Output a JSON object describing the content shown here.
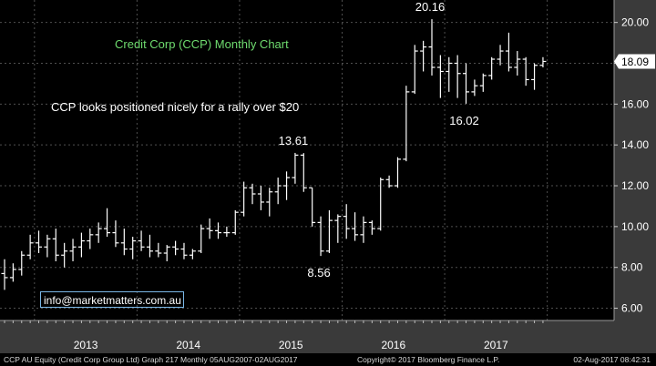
{
  "chart_data": {
    "type": "bar",
    "subtype": "ohlc-monthly",
    "title": "Credit Corp (CCP) Monthly Chart",
    "annotation_text": "CCP looks positioned nicely for a rally over $20",
    "email": "info@marketmatters.com.au",
    "last_price": "18.09",
    "ylim": [
      5.4,
      21.1
    ],
    "yticks": [
      "6.00",
      "8.00",
      "10.00",
      "12.00",
      "14.00",
      "16.00",
      "18.00",
      "20.00"
    ],
    "x_labels": [
      "2013",
      "2014",
      "2015",
      "2016",
      "2017"
    ],
    "price_labels": [
      {
        "text": "20.16",
        "value": 20.16,
        "index": 50
      },
      {
        "text": "13.61",
        "value": 13.61,
        "index": 34
      },
      {
        "text": "8.56",
        "value": 8.56,
        "index": 37
      },
      {
        "text": "16.02",
        "value": 16.02,
        "index": 54
      }
    ],
    "bars": [
      {
        "o": 7.7,
        "h": 8.4,
        "l": 6.9,
        "c": 7.5
      },
      {
        "o": 7.5,
        "h": 8.2,
        "l": 7.3,
        "c": 7.9
      },
      {
        "o": 7.9,
        "h": 8.8,
        "l": 7.6,
        "c": 8.6
      },
      {
        "o": 8.6,
        "h": 9.6,
        "l": 8.4,
        "c": 9.2
      },
      {
        "o": 9.2,
        "h": 9.8,
        "l": 8.7,
        "c": 9.0
      },
      {
        "o": 9.0,
        "h": 9.6,
        "l": 8.5,
        "c": 9.4
      },
      {
        "o": 9.4,
        "h": 9.9,
        "l": 8.3,
        "c": 8.6
      },
      {
        "o": 8.6,
        "h": 9.2,
        "l": 8.0,
        "c": 8.8
      },
      {
        "o": 8.8,
        "h": 9.4,
        "l": 8.3,
        "c": 9.0
      },
      {
        "o": 9.0,
        "h": 9.7,
        "l": 8.5,
        "c": 9.3
      },
      {
        "o": 9.3,
        "h": 9.9,
        "l": 8.9,
        "c": 9.6
      },
      {
        "o": 9.6,
        "h": 10.2,
        "l": 9.2,
        "c": 9.9
      },
      {
        "o": 9.9,
        "h": 10.9,
        "l": 9.5,
        "c": 9.7
      },
      {
        "o": 9.7,
        "h": 10.3,
        "l": 9.0,
        "c": 9.2
      },
      {
        "o": 9.2,
        "h": 9.9,
        "l": 8.6,
        "c": 8.9
      },
      {
        "o": 8.9,
        "h": 9.5,
        "l": 8.4,
        "c": 9.3
      },
      {
        "o": 9.3,
        "h": 9.8,
        "l": 8.8,
        "c": 9.0
      },
      {
        "o": 9.0,
        "h": 9.6,
        "l": 8.5,
        "c": 8.8
      },
      {
        "o": 8.8,
        "h": 9.2,
        "l": 8.5,
        "c": 8.7
      },
      {
        "o": 8.7,
        "h": 9.1,
        "l": 8.3,
        "c": 9.0
      },
      {
        "o": 9.0,
        "h": 9.3,
        "l": 8.6,
        "c": 8.9
      },
      {
        "o": 8.9,
        "h": 9.2,
        "l": 8.4,
        "c": 8.6
      },
      {
        "o": 8.6,
        "h": 8.9,
        "l": 8.4,
        "c": 8.8
      },
      {
        "o": 8.8,
        "h": 10.1,
        "l": 8.7,
        "c": 9.9
      },
      {
        "o": 9.9,
        "h": 10.4,
        "l": 9.4,
        "c": 9.8
      },
      {
        "o": 9.8,
        "h": 10.2,
        "l": 9.4,
        "c": 9.7
      },
      {
        "o": 9.7,
        "h": 10.0,
        "l": 9.5,
        "c": 9.7
      },
      {
        "o": 9.7,
        "h": 10.8,
        "l": 9.6,
        "c": 10.7
      },
      {
        "o": 10.7,
        "h": 12.2,
        "l": 10.5,
        "c": 11.9
      },
      {
        "o": 11.9,
        "h": 12.1,
        "l": 11.1,
        "c": 11.6
      },
      {
        "o": 11.6,
        "h": 12.0,
        "l": 10.8,
        "c": 11.2
      },
      {
        "o": 11.2,
        "h": 11.9,
        "l": 10.5,
        "c": 11.7
      },
      {
        "o": 11.7,
        "h": 12.4,
        "l": 11.1,
        "c": 12.0
      },
      {
        "o": 12.0,
        "h": 12.7,
        "l": 11.3,
        "c": 12.4
      },
      {
        "o": 12.4,
        "h": 13.61,
        "l": 12.1,
        "c": 13.5
      },
      {
        "o": 13.5,
        "h": 13.6,
        "l": 11.7,
        "c": 11.9
      },
      {
        "o": 11.9,
        "h": 11.9,
        "l": 10.0,
        "c": 10.2
      },
      {
        "o": 10.2,
        "h": 10.5,
        "l": 8.56,
        "c": 8.8
      },
      {
        "o": 8.8,
        "h": 10.8,
        "l": 8.7,
        "c": 10.3
      },
      {
        "o": 10.3,
        "h": 10.6,
        "l": 9.2,
        "c": 10.5
      },
      {
        "o": 10.5,
        "h": 11.1,
        "l": 9.4,
        "c": 9.9
      },
      {
        "o": 9.9,
        "h": 10.7,
        "l": 9.3,
        "c": 9.6
      },
      {
        "o": 9.6,
        "h": 10.5,
        "l": 9.2,
        "c": 10.2
      },
      {
        "o": 10.2,
        "h": 10.3,
        "l": 9.6,
        "c": 9.9
      },
      {
        "o": 9.9,
        "h": 12.4,
        "l": 9.8,
        "c": 12.3
      },
      {
        "o": 12.3,
        "h": 12.5,
        "l": 11.9,
        "c": 12.0
      },
      {
        "o": 12.0,
        "h": 13.4,
        "l": 11.9,
        "c": 13.3
      },
      {
        "o": 13.3,
        "h": 16.9,
        "l": 13.2,
        "c": 16.6
      },
      {
        "o": 16.6,
        "h": 18.9,
        "l": 16.5,
        "c": 18.6
      },
      {
        "o": 18.6,
        "h": 19.1,
        "l": 17.6,
        "c": 18.8
      },
      {
        "o": 18.8,
        "h": 20.16,
        "l": 17.4,
        "c": 17.8
      },
      {
        "o": 17.8,
        "h": 18.4,
        "l": 16.3,
        "c": 17.6
      },
      {
        "o": 17.6,
        "h": 18.3,
        "l": 16.6,
        "c": 18.0
      },
      {
        "o": 18.0,
        "h": 18.4,
        "l": 16.3,
        "c": 17.5
      },
      {
        "o": 17.5,
        "h": 18.0,
        "l": 16.02,
        "c": 16.6
      },
      {
        "o": 16.6,
        "h": 17.2,
        "l": 16.4,
        "c": 16.9
      },
      {
        "o": 16.9,
        "h": 17.5,
        "l": 16.6,
        "c": 17.4
      },
      {
        "o": 17.4,
        "h": 18.3,
        "l": 17.2,
        "c": 18.2
      },
      {
        "o": 18.2,
        "h": 18.9,
        "l": 17.9,
        "c": 18.6
      },
      {
        "o": 18.6,
        "h": 19.5,
        "l": 17.6,
        "c": 17.8
      },
      {
        "o": 17.8,
        "h": 18.6,
        "l": 17.4,
        "c": 18.2
      },
      {
        "o": 18.2,
        "h": 18.3,
        "l": 16.9,
        "c": 17.2
      },
      {
        "o": 17.2,
        "h": 18.0,
        "l": 16.7,
        "c": 17.9
      },
      {
        "o": 17.9,
        "h": 18.3,
        "l": 17.8,
        "c": 18.09
      }
    ]
  },
  "footer": {
    "left": "CCP AU Equity (Credit Corp Group Ltd) Graph 217  Monthly 05AUG2007-02AUG2017",
    "middle": "Copyright© 2017 Bloomberg Finance L.P.",
    "right": "02-Aug-2017 08:42:31"
  },
  "colors": {
    "background": "#000000",
    "bar": "#ffffff",
    "grid": "#4f4f4f",
    "axis_panel": "#3a3a3a",
    "title": "#6fdc6f",
    "email_border": "#7ab7e6"
  }
}
